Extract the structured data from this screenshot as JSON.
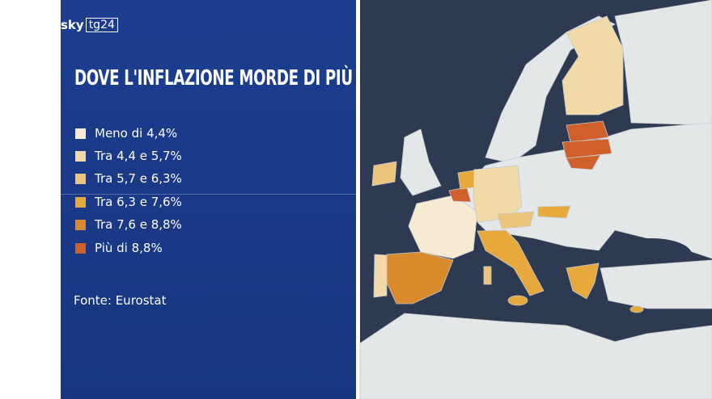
{
  "logo": {
    "brand": "sky",
    "channel": "tg24"
  },
  "title": "DOVE L'INFLAZIONE MORDE DI PIÙ",
  "legend": {
    "items": [
      {
        "label": "Meno di 4,4%",
        "color": "#f6ead2"
      },
      {
        "label": "Tra 4,4 e 5,7%",
        "color": "#f2d9a8"
      },
      {
        "label": "Tra 5,7 e 6,3%",
        "color": "#edc47c"
      },
      {
        "label": "Tra 6,3 e 7,6%",
        "color": "#e8a93c"
      },
      {
        "label": "Tra 7,6 e 8,8%",
        "color": "#d98a2c"
      },
      {
        "label": "Più di 8,8%",
        "color": "#d0602a"
      }
    ]
  },
  "source": "Fonte: Eurostat"
}
